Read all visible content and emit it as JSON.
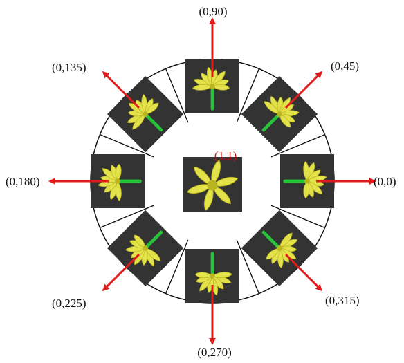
{
  "diagram": {
    "center": {
      "label": "(1,1)",
      "label_color": "#cc1111"
    },
    "views": [
      {
        "id": "view-0",
        "label": "(0,0)",
        "angle": 0
      },
      {
        "id": "view-45",
        "label": "(0,45)",
        "angle": 45
      },
      {
        "id": "view-90",
        "label": "(0,90)",
        "angle": 90
      },
      {
        "id": "view-135",
        "label": "(0,135)",
        "angle": 135
      },
      {
        "id": "view-180",
        "label": "(0,180)",
        "angle": 180
      },
      {
        "id": "view-225",
        "label": "(0,225)",
        "angle": 225
      },
      {
        "id": "view-270",
        "label": "(0,270)",
        "angle": 270
      },
      {
        "id": "view-315",
        "label": "(0,315)",
        "angle": 315
      }
    ],
    "colors": {
      "arrow": "#e01b1b",
      "tile_bg": "#333333",
      "petal": "#e4e24a",
      "petal_dark": "#b9b520",
      "stem": "#27c23a",
      "outline": "#111111"
    }
  }
}
